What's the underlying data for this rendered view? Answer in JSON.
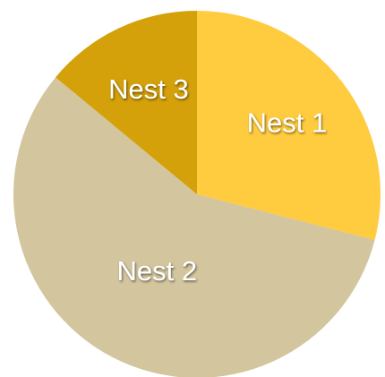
{
  "chart_data": {
    "type": "pie",
    "slices": [
      {
        "label": "Nest 1",
        "value": 29,
        "color": "#FFCB3F"
      },
      {
        "label": "Nest 2",
        "value": 57,
        "color": "#D3C59D"
      },
      {
        "label": "Nest 3",
        "value": 14,
        "color": "#D4A10A"
      }
    ],
    "title": "",
    "legend": "none",
    "start_angle": "12 o'clock",
    "direction": "clockwise",
    "labels_on_slices": true
  }
}
